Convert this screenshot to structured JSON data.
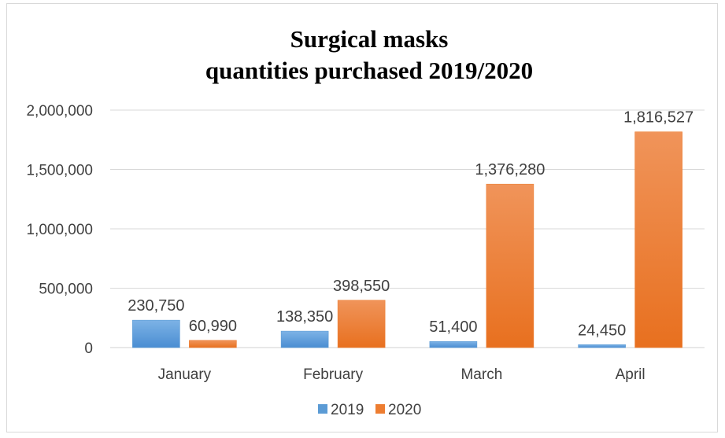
{
  "chart_data": {
    "type": "bar",
    "title": [
      "Surgical masks",
      "quantities purchased 2019/2020"
    ],
    "categories": [
      "January",
      "February",
      "March",
      "April"
    ],
    "series": [
      {
        "name": "2019",
        "color": "#5b9bd5",
        "values": [
          230750,
          138350,
          51400,
          24450
        ],
        "labels": [
          "230,750",
          "138,350",
          "51,400",
          "24,450"
        ]
      },
      {
        "name": "2020",
        "color": "#ed7d31",
        "values": [
          60990,
          398550,
          1376280,
          1816527
        ],
        "labels": [
          "60,990",
          "398,550",
          "1,376,280",
          "1,816,527"
        ]
      }
    ],
    "ylim": [
      0,
      2000000
    ],
    "yticks": [
      0,
      500000,
      1000000,
      1500000,
      2000000
    ],
    "ytick_labels": [
      "0",
      "500,000",
      "1,000,000",
      "1,500,000",
      "2,000,000"
    ],
    "grid": true,
    "legend": "bottom",
    "xlabel": "",
    "ylabel": ""
  }
}
